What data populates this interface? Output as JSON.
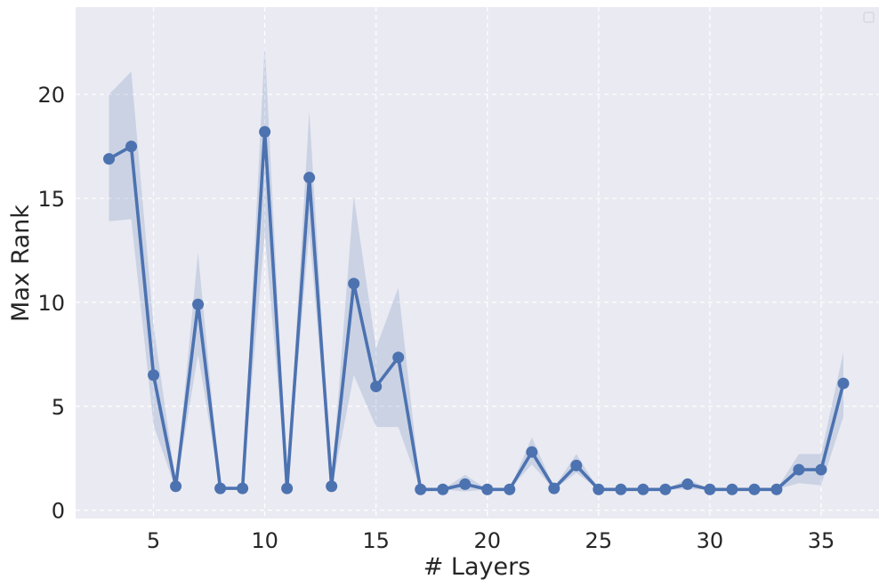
{
  "chart_data": {
    "type": "line",
    "title": "",
    "xlabel": "# Layers",
    "ylabel": "Max Rank",
    "xlim": [
      1.5,
      37.6
    ],
    "ylim": [
      -0.4,
      24.2
    ],
    "xticks": [
      5,
      10,
      15,
      20,
      25,
      30,
      35
    ],
    "yticks": [
      0,
      5,
      10,
      15,
      20
    ],
    "grid": true,
    "legend": "top-right, empty",
    "colors": {
      "line": "#4c72b0",
      "band": "#4c72b0",
      "plot_background": "#eaeaf2",
      "grid": "#ffffff"
    },
    "series": [
      {
        "x": [
          3,
          4,
          5,
          6,
          7,
          8,
          9,
          10,
          11,
          12,
          13,
          14,
          15,
          16,
          17,
          18,
          19,
          20,
          21,
          22,
          23,
          24,
          25,
          26,
          27,
          28,
          29,
          30,
          31,
          32,
          33,
          34,
          35,
          36
        ],
        "values": [
          16.9,
          17.5,
          6.5,
          1.15,
          9.9,
          1.05,
          1.05,
          18.2,
          1.05,
          16.0,
          1.15,
          10.9,
          5.95,
          7.35,
          1.0,
          1.0,
          1.25,
          1.0,
          1.0,
          2.8,
          1.05,
          2.15,
          1.0,
          1.0,
          1.0,
          1.0,
          1.25,
          1.0,
          1.0,
          1.0,
          1.0,
          1.95,
          1.95,
          6.1
        ],
        "lower": [
          13.9,
          14.0,
          4.1,
          1.0,
          7.5,
          1.0,
          1.0,
          13.3,
          1.0,
          13.4,
          1.0,
          6.5,
          4.0,
          4.0,
          1.0,
          1.0,
          0.9,
          1.0,
          1.0,
          2.2,
          1.0,
          1.8,
          1.0,
          1.0,
          1.0,
          1.0,
          1.0,
          1.0,
          1.0,
          1.0,
          1.0,
          1.3,
          1.2,
          4.5
        ],
        "upper": [
          20.0,
          21.1,
          8.9,
          1.3,
          12.4,
          1.1,
          1.1,
          22.4,
          1.1,
          19.2,
          1.3,
          15.1,
          7.8,
          10.7,
          1.0,
          1.0,
          1.7,
          1.0,
          1.0,
          3.5,
          1.1,
          2.7,
          1.0,
          1.0,
          1.0,
          1.0,
          1.5,
          1.0,
          1.0,
          1.0,
          1.0,
          2.7,
          2.7,
          7.6
        ]
      }
    ]
  }
}
